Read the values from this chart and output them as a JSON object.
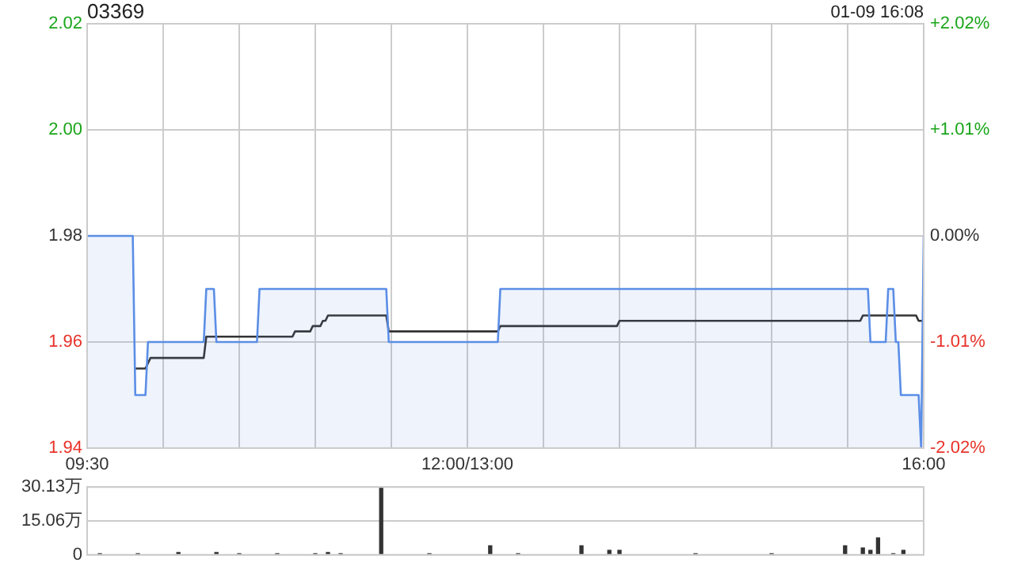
{
  "chart_data": [
    {
      "type": "line",
      "title": "03369",
      "annotations": [
        "01-09 16:08"
      ],
      "categories": [
        "09:30",
        null,
        null,
        null,
        null,
        null,
        null,
        null,
        null,
        null,
        null,
        null,
        null,
        null,
        null,
        null,
        null,
        null,
        null,
        null,
        null,
        null,
        null,
        null,
        null,
        null,
        null,
        null,
        null,
        null,
        null,
        null,
        null,
        null,
        null,
        null,
        null,
        null,
        null,
        null,
        null,
        null,
        null,
        null,
        null,
        null,
        null,
        null,
        null,
        null,
        null,
        null,
        null,
        null,
        null,
        null,
        null,
        null,
        null,
        null,
        null,
        null,
        null,
        null,
        null,
        null,
        null,
        null,
        null,
        null,
        null,
        null,
        null,
        null,
        null,
        null,
        null,
        null,
        null,
        null,
        null,
        null,
        null,
        null,
        null,
        null,
        null,
        null,
        null,
        null,
        null,
        null,
        null,
        null,
        null,
        null,
        null,
        null,
        null,
        null,
        null,
        null,
        null,
        null,
        null,
        null,
        null,
        null,
        null,
        null,
        null,
        null,
        null,
        null,
        null,
        null,
        null,
        null,
        null,
        null,
        null,
        null,
        null,
        null,
        null,
        null,
        null,
        null,
        null,
        null,
        null,
        null,
        null,
        null,
        null,
        null,
        null,
        null,
        null,
        null,
        null,
        null,
        null,
        null,
        null,
        null,
        null,
        null,
        null,
        null,
        "12:00/13:00",
        null,
        null,
        null,
        null,
        null,
        null,
        null,
        null,
        null,
        null,
        null,
        null,
        null,
        null,
        null,
        null,
        null,
        null,
        null,
        null,
        null,
        null,
        null,
        null,
        null,
        null,
        null,
        null,
        null,
        null,
        null,
        null,
        null,
        null,
        null,
        null,
        null,
        null,
        null,
        null,
        null,
        null,
        null,
        null,
        null,
        null,
        null,
        null,
        null,
        null,
        null,
        null,
        null,
        null,
        null,
        null,
        null,
        null,
        null,
        null,
        null,
        null,
        null,
        null,
        null,
        null,
        null,
        null,
        null,
        null,
        null,
        null,
        null,
        null,
        null,
        null,
        null,
        null,
        null,
        null,
        null,
        null,
        null,
        null,
        null,
        null,
        null,
        null,
        null,
        null,
        null,
        null,
        null,
        null,
        null,
        null,
        null,
        null,
        null,
        null,
        null,
        null,
        null,
        null,
        null,
        null,
        null,
        null,
        null,
        null,
        null,
        null,
        null,
        null,
        null,
        null,
        null,
        null,
        null,
        null,
        null,
        null,
        null,
        null,
        null,
        null,
        null,
        null,
        null,
        null,
        null,
        null,
        null,
        null,
        null,
        null,
        null,
        null,
        null,
        null,
        null,
        null,
        null,
        null,
        null,
        null,
        null,
        null,
        null,
        null,
        null,
        null,
        null,
        null,
        null,
        null,
        null,
        null,
        null,
        null,
        null,
        null,
        null,
        null,
        null,
        null,
        null,
        null,
        null,
        null,
        null,
        null,
        null,
        null,
        null,
        null,
        null,
        null,
        null,
        "16:00"
      ],
      "ylim": [
        1.94,
        2.02
      ],
      "yticks": [
        1.94,
        1.96,
        1.98,
        {
          "value": 2,
          "label": "2.00"
        },
        2.02
      ],
      "y2lim": [
        -2.02,
        2.02
      ],
      "y2ticks": [
        {
          "value": -2.02,
          "label": "-2.02%"
        },
        {
          "value": -1.01,
          "label": "-1.01%"
        },
        {
          "value": 0,
          "label": "0.00%"
        },
        {
          "value": 1.01,
          "label": "+1.01%"
        },
        {
          "value": 2.02,
          "label": "+2.02%"
        }
      ],
      "grid": true,
      "legend": false,
      "marker": "none",
      "series": [
        {
          "type": "area",
          "color": "#5b8ee6",
          "values": [
            1.98,
            1.98,
            1.98,
            1.98,
            1.98,
            1.98,
            1.98,
            1.98,
            1.98,
            1.98,
            1.98,
            1.98,
            1.98,
            1.98,
            1.98,
            1.98,
            1.98,
            1.98,
            1.98,
            1.95,
            1.95,
            1.95,
            1.95,
            1.95,
            1.96,
            1.96,
            1.96,
            1.96,
            1.96,
            1.96,
            1.96,
            1.96,
            1.96,
            1.96,
            1.96,
            1.96,
            1.96,
            1.96,
            1.96,
            1.96,
            1.96,
            1.96,
            1.96,
            1.96,
            1.96,
            1.96,
            1.96,
            1.97,
            1.97,
            1.97,
            1.97,
            1.96,
            1.96,
            1.96,
            1.96,
            1.96,
            1.96,
            1.96,
            1.96,
            1.96,
            1.96,
            1.96,
            1.96,
            1.96,
            1.96,
            1.96,
            1.96,
            1.96,
            1.97,
            1.97,
            1.97,
            1.97,
            1.97,
            1.97,
            1.97,
            1.97,
            1.97,
            1.97,
            1.97,
            1.97,
            1.97,
            1.97,
            1.97,
            1.97,
            1.97,
            1.97,
            1.97,
            1.97,
            1.97,
            1.97,
            1.97,
            1.97,
            1.97,
            1.97,
            1.97,
            1.97,
            1.97,
            1.97,
            1.97,
            1.97,
            1.97,
            1.97,
            1.97,
            1.97,
            1.97,
            1.97,
            1.97,
            1.97,
            1.97,
            1.97,
            1.97,
            1.97,
            1.97,
            1.97,
            1.97,
            1.97,
            1.97,
            1.97,
            1.97,
            1.96,
            1.96,
            1.96,
            1.96,
            1.96,
            1.96,
            1.96,
            1.96,
            1.96,
            1.96,
            1.96,
            1.96,
            1.96,
            1.96,
            1.96,
            1.96,
            1.96,
            1.96,
            1.96,
            1.96,
            1.96,
            1.96,
            1.96,
            1.96,
            1.96,
            1.96,
            1.96,
            1.96,
            1.96,
            1.96,
            1.96,
            1.96,
            1.96,
            1.96,
            1.96,
            1.96,
            1.96,
            1.96,
            1.96,
            1.96,
            1.96,
            1.96,
            1.96,
            1.96,
            1.97,
            1.97,
            1.97,
            1.97,
            1.97,
            1.97,
            1.97,
            1.97,
            1.97,
            1.97,
            1.97,
            1.97,
            1.97,
            1.97,
            1.97,
            1.97,
            1.97,
            1.97,
            1.97,
            1.97,
            1.97,
            1.97,
            1.97,
            1.97,
            1.97,
            1.97,
            1.97,
            1.97,
            1.97,
            1.97,
            1.97,
            1.97,
            1.97,
            1.97,
            1.97,
            1.97,
            1.97,
            1.97,
            1.97,
            1.97,
            1.97,
            1.97,
            1.97,
            1.97,
            1.97,
            1.97,
            1.97,
            1.97,
            1.97,
            1.97,
            1.97,
            1.97,
            1.97,
            1.97,
            1.97,
            1.97,
            1.97,
            1.97,
            1.97,
            1.97,
            1.97,
            1.97,
            1.97,
            1.97,
            1.97,
            1.97,
            1.97,
            1.97,
            1.97,
            1.97,
            1.97,
            1.97,
            1.97,
            1.97,
            1.97,
            1.97,
            1.97,
            1.97,
            1.97,
            1.97,
            1.97,
            1.97,
            1.97,
            1.97,
            1.97,
            1.97,
            1.97,
            1.97,
            1.97,
            1.97,
            1.97,
            1.97,
            1.97,
            1.97,
            1.97,
            1.97,
            1.97,
            1.97,
            1.97,
            1.97,
            1.97,
            1.97,
            1.97,
            1.97,
            1.97,
            1.97,
            1.97,
            1.97,
            1.97,
            1.97,
            1.97,
            1.97,
            1.97,
            1.97,
            1.97,
            1.97,
            1.97,
            1.97,
            1.97,
            1.97,
            1.97,
            1.97,
            1.97,
            1.97,
            1.97,
            1.97,
            1.97,
            1.97,
            1.97,
            1.97,
            1.97,
            1.97,
            1.97,
            1.97,
            1.97,
            1.97,
            1.97,
            1.97,
            1.97,
            1.97,
            1.97,
            1.97,
            1.97,
            1.97,
            1.97,
            1.97,
            1.96,
            1.96,
            1.96,
            1.96,
            1.96,
            1.96,
            1.96,
            1.97,
            1.97,
            1.97,
            1.96,
            1.96,
            1.95,
            1.95,
            1.95,
            1.95,
            1.95,
            1.95,
            1.95,
            1.95,
            1.94,
            1.98
          ]
        },
        {
          "type": "line",
          "color": "#333333",
          "values": [
            null,
            null,
            null,
            null,
            null,
            null,
            null,
            null,
            null,
            null,
            null,
            null,
            null,
            null,
            null,
            null,
            null,
            null,
            null,
            1.955,
            1.955,
            1.955,
            1.955,
            1.955,
            1.956,
            1.957,
            1.957,
            1.957,
            1.957,
            1.957,
            1.957,
            1.957,
            1.957,
            1.957,
            1.957,
            1.957,
            1.957,
            1.957,
            1.957,
            1.957,
            1.957,
            1.957,
            1.957,
            1.957,
            1.957,
            1.957,
            1.957,
            1.961,
            1.961,
            1.961,
            1.961,
            1.961,
            1.961,
            1.961,
            1.961,
            1.961,
            1.961,
            1.961,
            1.961,
            1.961,
            1.961,
            1.961,
            1.961,
            1.961,
            1.961,
            1.961,
            1.961,
            1.961,
            1.961,
            1.961,
            1.961,
            1.961,
            1.961,
            1.961,
            1.961,
            1.961,
            1.961,
            1.961,
            1.961,
            1.961,
            1.961,
            1.961,
            1.962,
            1.962,
            1.962,
            1.962,
            1.962,
            1.962,
            1.962,
            1.963,
            1.963,
            1.963,
            1.963,
            1.964,
            1.964,
            1.965,
            1.965,
            1.965,
            1.965,
            1.965,
            1.965,
            1.965,
            1.965,
            1.965,
            1.965,
            1.965,
            1.965,
            1.965,
            1.965,
            1.965,
            1.965,
            1.965,
            1.965,
            1.965,
            1.965,
            1.965,
            1.965,
            1.965,
            1.965,
            1.962,
            1.962,
            1.962,
            1.962,
            1.962,
            1.962,
            1.962,
            1.962,
            1.962,
            1.962,
            1.962,
            1.962,
            1.962,
            1.962,
            1.962,
            1.962,
            1.962,
            1.962,
            1.962,
            1.962,
            1.962,
            1.962,
            1.962,
            1.962,
            1.962,
            1.962,
            1.962,
            1.962,
            1.962,
            1.962,
            1.962,
            1.962,
            1.962,
            1.962,
            1.962,
            1.962,
            1.962,
            1.962,
            1.962,
            1.962,
            1.962,
            1.962,
            1.962,
            1.962,
            1.963,
            1.963,
            1.963,
            1.963,
            1.963,
            1.963,
            1.963,
            1.963,
            1.963,
            1.963,
            1.963,
            1.963,
            1.963,
            1.963,
            1.963,
            1.963,
            1.963,
            1.963,
            1.963,
            1.963,
            1.963,
            1.963,
            1.963,
            1.963,
            1.963,
            1.963,
            1.963,
            1.963,
            1.963,
            1.963,
            1.963,
            1.963,
            1.963,
            1.963,
            1.963,
            1.963,
            1.963,
            1.963,
            1.963,
            1.963,
            1.963,
            1.963,
            1.963,
            1.963,
            1.963,
            1.963,
            1.963,
            1.964,
            1.964,
            1.964,
            1.964,
            1.964,
            1.964,
            1.964,
            1.964,
            1.964,
            1.964,
            1.964,
            1.964,
            1.964,
            1.964,
            1.964,
            1.964,
            1.964,
            1.964,
            1.964,
            1.964,
            1.964,
            1.964,
            1.964,
            1.964,
            1.964,
            1.964,
            1.964,
            1.964,
            1.964,
            1.964,
            1.964,
            1.964,
            1.964,
            1.964,
            1.964,
            1.964,
            1.964,
            1.964,
            1.964,
            1.964,
            1.964,
            1.964,
            1.964,
            1.964,
            1.964,
            1.964,
            1.964,
            1.964,
            1.964,
            1.964,
            1.964,
            1.964,
            1.964,
            1.964,
            1.964,
            1.964,
            1.964,
            1.964,
            1.964,
            1.964,
            1.964,
            1.964,
            1.964,
            1.964,
            1.964,
            1.964,
            1.964,
            1.964,
            1.964,
            1.964,
            1.964,
            1.964,
            1.964,
            1.964,
            1.964,
            1.964,
            1.964,
            1.964,
            1.964,
            1.964,
            1.964,
            1.964,
            1.964,
            1.964,
            1.964,
            1.964,
            1.964,
            1.964,
            1.964,
            1.964,
            1.964,
            1.964,
            1.964,
            1.964,
            1.964,
            1.964,
            1.965,
            1.965,
            1.965,
            1.965,
            1.965,
            1.965,
            1.965,
            1.965,
            1.965,
            1.965,
            1.965,
            1.965,
            1.965,
            1.965,
            1.965,
            1.965,
            1.965,
            1.965,
            1.965,
            1.965,
            1.965,
            1.965,
            1.964,
            1.964,
            1.964
          ]
        }
      ]
    },
    {
      "type": "bar",
      "categories": [
        null,
        null,
        null,
        null,
        null,
        null,
        null,
        null,
        null,
        null,
        null,
        null,
        null,
        null,
        null,
        null,
        null,
        null,
        null,
        null,
        null,
        null,
        null,
        null,
        null,
        null,
        null,
        null,
        null,
        null,
        null,
        null,
        null,
        null,
        null,
        null,
        null,
        null,
        null,
        null,
        null,
        null,
        null,
        null,
        null,
        null,
        null,
        null,
        null,
        null,
        null,
        null,
        null,
        null,
        null,
        null,
        null,
        null,
        null,
        null,
        null,
        null,
        null,
        null,
        null,
        null,
        null,
        null,
        null,
        null,
        null,
        null,
        null,
        null,
        null,
        null,
        null,
        null,
        null,
        null,
        null,
        null,
        null,
        null,
        null,
        null,
        null,
        null,
        null,
        null,
        null,
        null,
        null,
        null,
        null,
        null,
        null,
        null,
        null,
        null,
        null,
        null,
        null,
        null,
        null,
        null,
        null,
        null,
        null,
        null,
        null,
        null,
        null,
        null,
        null,
        null,
        null,
        null,
        null,
        null,
        null,
        null,
        null,
        null,
        null,
        null,
        null,
        null,
        null,
        null,
        null,
        null,
        null,
        null,
        null,
        null,
        null,
        null,
        null,
        null,
        null,
        null,
        null,
        null,
        null,
        null,
        null,
        null,
        null,
        null,
        null,
        null,
        null,
        null,
        null,
        null,
        null,
        null,
        null,
        null,
        null,
        null,
        null,
        null,
        null,
        null,
        null,
        null,
        null,
        null,
        null,
        null,
        null,
        null,
        null,
        null,
        null,
        null,
        null,
        null,
        null,
        null,
        null,
        null,
        null,
        null,
        null,
        null,
        null,
        null,
        null,
        null,
        null,
        null,
        null,
        null,
        null,
        null,
        null,
        null,
        null,
        null,
        null,
        null,
        null,
        null,
        null,
        null,
        null,
        null,
        null,
        null,
        null,
        null,
        null,
        null,
        null,
        null,
        null,
        null,
        null,
        null,
        null,
        null,
        null,
        null,
        null,
        null,
        null,
        null,
        null,
        null,
        null,
        null,
        null,
        null,
        null,
        null,
        null,
        null,
        null,
        null,
        null,
        null,
        null,
        null,
        null,
        null,
        null,
        null,
        null,
        null,
        null,
        null,
        null,
        null,
        null,
        null,
        null,
        null,
        null,
        null,
        null,
        null,
        null,
        null,
        null,
        null,
        null,
        null,
        null,
        null,
        null,
        null,
        null,
        null,
        null,
        null,
        null,
        null,
        null,
        null,
        null,
        null,
        null,
        null,
        null,
        null,
        null,
        null,
        null,
        null,
        null,
        null,
        null,
        null,
        null,
        null,
        null,
        null,
        null,
        null,
        null,
        null,
        null,
        null,
        null,
        null,
        null,
        null,
        null,
        null,
        null,
        null,
        null,
        null,
        null,
        null,
        null,
        null,
        null,
        null,
        null,
        null,
        null,
        null,
        null,
        null,
        null,
        null,
        null
      ],
      "ylim": [
        0,
        30.13
      ],
      "yticks": [
        0,
        {
          "value": 15.06,
          "label": "15.06万"
        },
        {
          "value": 30.13,
          "label": "30.13万"
        }
      ],
      "grid": "y",
      "legend": false,
      "tick_labels": "y",
      "color": "#333333",
      "values": [
        0,
        0,
        0,
        0,
        0,
        0.5,
        0,
        0,
        0,
        0,
        0,
        0,
        0,
        0,
        0,
        0,
        0,
        0,
        0,
        0,
        0.5,
        0,
        0,
        0,
        0,
        0,
        0,
        0,
        0,
        0,
        0,
        0,
        0,
        0,
        0,
        0,
        1,
        0,
        0,
        0,
        0,
        0,
        0,
        0,
        0,
        0,
        0,
        0,
        0,
        0,
        0,
        1,
        0,
        0,
        0,
        0,
        0,
        0,
        0,
        0,
        0.5,
        0,
        0,
        0,
        0,
        0,
        0,
        0,
        0,
        0,
        0,
        0,
        0,
        0,
        0,
        0.5,
        0,
        0,
        0,
        0,
        0,
        0,
        0,
        0,
        0,
        0,
        0,
        0,
        0,
        0,
        0.5,
        0,
        0,
        0,
        0,
        1,
        0,
        0,
        0,
        0,
        0.5,
        0,
        0,
        0,
        0,
        0,
        0,
        0,
        0,
        0,
        0,
        0,
        0,
        0,
        0,
        0,
        30.13,
        0,
        0,
        0,
        0,
        0,
        0,
        0,
        0,
        0,
        0,
        0,
        0,
        0,
        0,
        0,
        0,
        0,
        0,
        0.5,
        0,
        0,
        0,
        0,
        0,
        0,
        0,
        0,
        0,
        0,
        0,
        0,
        0,
        0,
        0,
        0,
        0,
        0,
        0,
        0,
        0,
        0,
        0,
        4,
        0,
        0,
        0,
        0,
        0,
        0,
        0,
        0,
        0,
        0,
        0.5,
        0,
        0,
        0,
        0,
        0,
        0,
        0,
        0,
        0,
        0,
        0,
        0,
        0,
        0,
        0,
        0,
        0,
        0,
        0,
        0,
        0,
        0,
        0,
        0,
        4,
        0,
        0,
        0,
        0,
        0,
        0,
        0,
        0,
        0,
        0,
        2,
        0,
        0,
        0,
        2,
        0,
        0,
        0,
        0,
        0,
        0,
        0,
        0,
        0,
        0,
        0,
        0,
        0,
        0,
        0,
        0,
        0,
        0,
        0,
        0,
        0,
        0,
        0,
        0,
        0,
        0,
        0,
        0,
        0,
        0.5,
        0,
        0,
        0,
        0,
        0,
        0,
        0,
        0,
        0,
        0,
        0,
        0,
        0,
        0,
        0,
        0,
        0,
        0,
        0,
        0,
        0,
        0,
        0,
        0,
        0,
        0,
        0,
        0,
        0,
        0.5,
        0,
        0,
        0,
        0,
        0,
        0,
        0,
        0,
        0,
        0,
        0,
        0,
        0,
        0,
        0,
        0,
        0,
        0,
        0,
        0,
        0,
        0,
        0,
        0,
        0,
        0,
        0,
        0,
        4,
        0,
        0,
        0,
        0,
        0,
        0,
        3,
        0,
        0,
        2,
        0,
        0,
        7.5,
        0,
        0,
        0,
        0,
        0,
        0.5,
        0,
        0,
        0,
        2,
        0,
        0,
        0,
        0,
        0,
        0,
        0,
        0
      ]
    }
  ]
}
